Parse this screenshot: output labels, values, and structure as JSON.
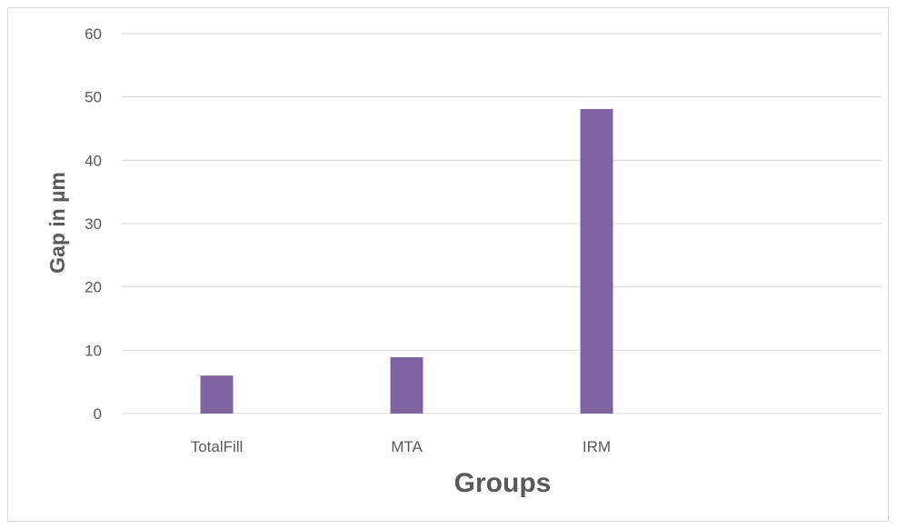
{
  "chart_data": {
    "type": "bar",
    "title": "",
    "xlabel": "Groups",
    "ylabel": "Gap in µm",
    "categories": [
      "TotalFill",
      "MTA",
      "IRM",
      ""
    ],
    "values": [
      6,
      8.9,
      48.1,
      null
    ],
    "ylim": [
      0,
      60
    ],
    "yticks": [
      0,
      10,
      20,
      30,
      40,
      50,
      60
    ],
    "grid": true,
    "legend": "none",
    "bar_color": "#8064A2",
    "grid_color": "#d9d9d9",
    "label_color": "#595959"
  }
}
